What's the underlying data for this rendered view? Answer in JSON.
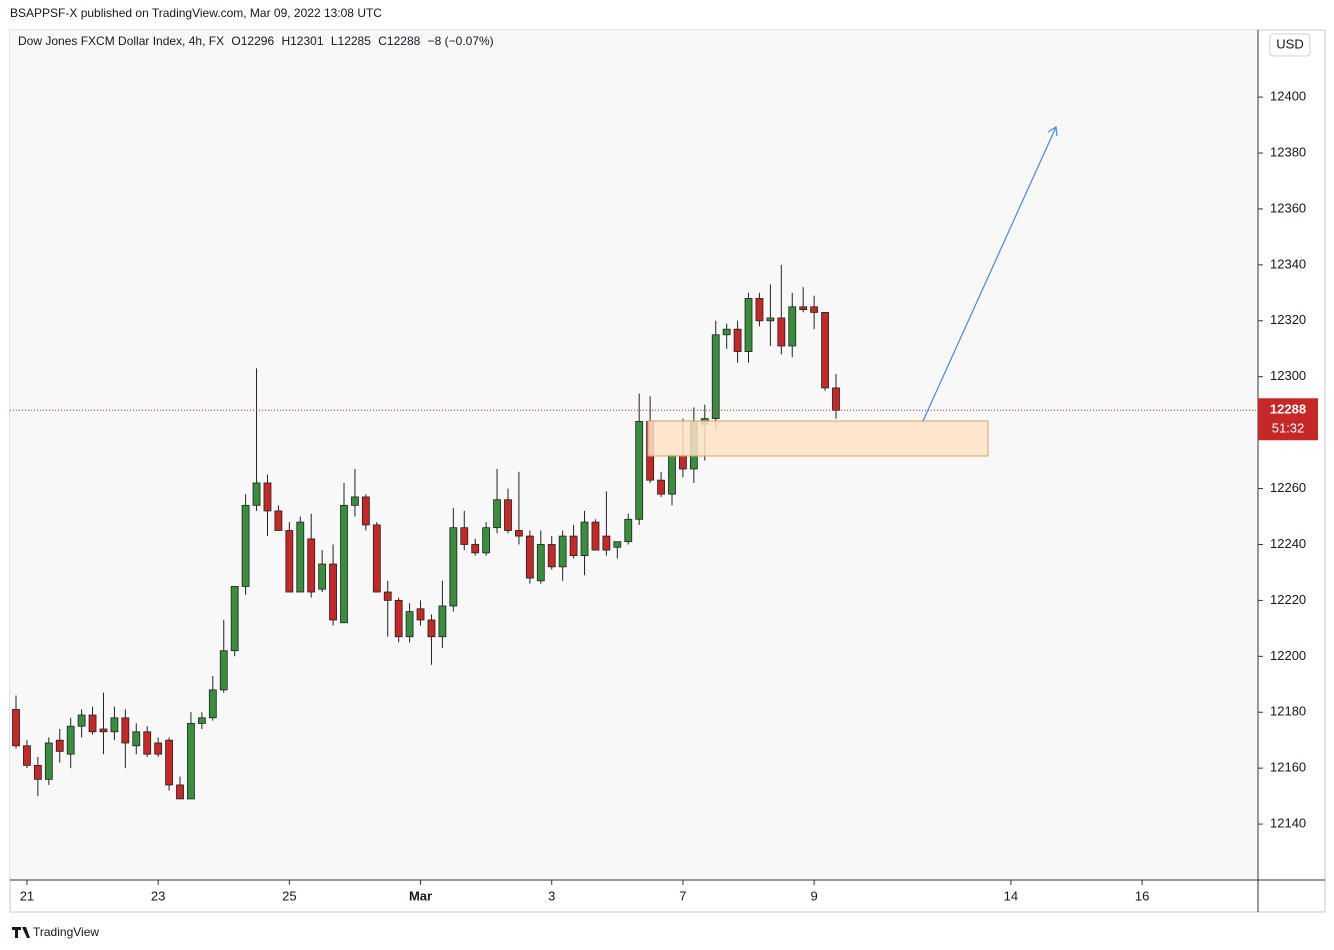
{
  "header": "BSAPPSF-X published on TradingView.com, Mar 09, 2022 13:08 UTC",
  "footer": "TradingView",
  "chart_data": {
    "type": "candlestick",
    "symbol": "Dow Jones FXCM Dollar Index, 4h, FX",
    "ohlc_legend": [
      "O12296",
      "H12301",
      "L12285",
      "C12288"
    ],
    "change": "−8 (−0.07%)",
    "currency": "USD",
    "countdown": "51:32",
    "up_color": "#388e3c",
    "down_color": "#c62828",
    "ylim": [
      12120,
      12424
    ],
    "yticks": [
      12140,
      12160,
      12180,
      12200,
      12220,
      12240,
      12260,
      12280,
      12300,
      12320,
      12340,
      12360,
      12380,
      12400
    ],
    "xlim": [
      -0.55,
      113.6
    ],
    "xticks": [
      {
        "value": 1,
        "label": "21"
      },
      {
        "value": 13,
        "label": "23"
      },
      {
        "value": 25,
        "label": "25"
      },
      {
        "value": 37,
        "label": "Mar"
      },
      {
        "value": 49,
        "label": "3"
      },
      {
        "value": 61,
        "label": "7"
      },
      {
        "value": 73,
        "label": "9"
      },
      {
        "value": 91,
        "label": "14"
      },
      {
        "value": 103,
        "label": "16"
      }
    ],
    "ohlc": [
      [
        12181,
        12186,
        12167,
        12168
      ],
      [
        12168,
        12170,
        12160,
        12161
      ],
      [
        12161,
        12164,
        12150,
        12156
      ],
      [
        12156,
        12171,
        12154,
        12169
      ],
      [
        12170,
        12174,
        12162,
        12166
      ],
      [
        12165,
        12178,
        12160,
        12175
      ],
      [
        12175,
        12181,
        12171,
        12179
      ],
      [
        12179,
        12182,
        12172,
        12173
      ],
      [
        12174,
        12187,
        12165,
        12173
      ],
      [
        12173,
        12182,
        12170,
        12178
      ],
      [
        12178,
        12181,
        12160,
        12169
      ],
      [
        12168,
        12176,
        12165,
        12173
      ],
      [
        12173,
        12175,
        12164,
        12165
      ],
      [
        12169,
        12171,
        12164,
        12165
      ],
      [
        12170,
        12171,
        12152,
        12154
      ],
      [
        12154,
        12157,
        12149,
        12149
      ],
      [
        12149,
        12180,
        12149,
        12176
      ],
      [
        12176,
        12180,
        12174,
        12178
      ],
      [
        12178,
        12193,
        12177,
        12188
      ],
      [
        12188,
        12213,
        12187,
        12202
      ],
      [
        12202,
        12225,
        12200,
        12225
      ],
      [
        12225,
        12258,
        12222,
        12254
      ],
      [
        12254,
        12303,
        12252,
        12262
      ],
      [
        12262,
        12265,
        12243,
        12252
      ],
      [
        12252,
        12254,
        12247,
        12245
      ],
      [
        12245,
        12248,
        12223,
        12223
      ],
      [
        12223,
        12250,
        12223,
        12248
      ],
      [
        12242,
        12251,
        12221,
        12223
      ],
      [
        12224,
        12238,
        12223,
        12233
      ],
      [
        12233,
        12240,
        12211,
        12213
      ],
      [
        12212,
        12262,
        12212,
        12254
      ],
      [
        12254,
        12267,
        12250,
        12257
      ],
      [
        12257,
        12258,
        12245,
        12247
      ],
      [
        12247,
        12248,
        12223,
        12223
      ],
      [
        12223,
        12227,
        12207,
        12220
      ],
      [
        12220,
        12221,
        12205,
        12207
      ],
      [
        12207,
        12219,
        12205,
        12216
      ],
      [
        12217,
        12220,
        12211,
        12213
      ],
      [
        12213,
        12215,
        12197,
        12207
      ],
      [
        12207,
        12227,
        12203,
        12218
      ],
      [
        12218,
        12253,
        12216,
        12246
      ],
      [
        12246,
        12252,
        12238,
        12240
      ],
      [
        12240,
        12242,
        12236,
        12237
      ],
      [
        12237,
        12248,
        12236,
        12246
      ],
      [
        12246,
        12267,
        12244,
        12256
      ],
      [
        12256,
        12260,
        12244,
        12245
      ],
      [
        12245,
        12266,
        12240,
        12243
      ],
      [
        12243,
        12245,
        12226,
        12228
      ],
      [
        12227,
        12245,
        12226,
        12240
      ],
      [
        12240,
        12243,
        12231,
        12232
      ],
      [
        12232,
        12245,
        12227,
        12243
      ],
      [
        12243,
        12247,
        12235,
        12236
      ],
      [
        12236,
        12252,
        12229,
        12248
      ],
      [
        12248,
        12249,
        12238,
        12238
      ],
      [
        12243,
        12259,
        12236,
        12238
      ],
      [
        12239,
        12241,
        12235,
        12241
      ],
      [
        12241,
        12251,
        12240,
        12249
      ],
      [
        12249,
        12294,
        12247,
        12284
      ],
      [
        12284,
        12293,
        12262,
        12263
      ],
      [
        12263,
        12266,
        12257,
        12258
      ],
      [
        12258,
        12272,
        12254,
        12272
      ],
      [
        12272,
        12285,
        12264,
        12267
      ],
      [
        12267,
        12289,
        12262,
        12284
      ],
      [
        12283,
        12290,
        12270,
        12285
      ],
      [
        12285,
        12320,
        12281,
        12315
      ],
      [
        12315,
        12319,
        12310,
        12317
      ],
      [
        12317,
        12320,
        12305,
        12309
      ],
      [
        12309,
        12330,
        12305,
        12328
      ],
      [
        12328,
        12330,
        12318,
        12320
      ],
      [
        12320,
        12333,
        12311,
        12321
      ],
      [
        12321,
        12340,
        12308,
        12311
      ],
      [
        12311,
        12330,
        12307,
        12325
      ],
      [
        12325,
        12332,
        12323,
        12324
      ],
      [
        12325,
        12329,
        12317,
        12323
      ],
      [
        12323,
        12323,
        12295,
        12296
      ],
      [
        12296,
        12301,
        12285,
        12288
      ]
    ]
  }
}
